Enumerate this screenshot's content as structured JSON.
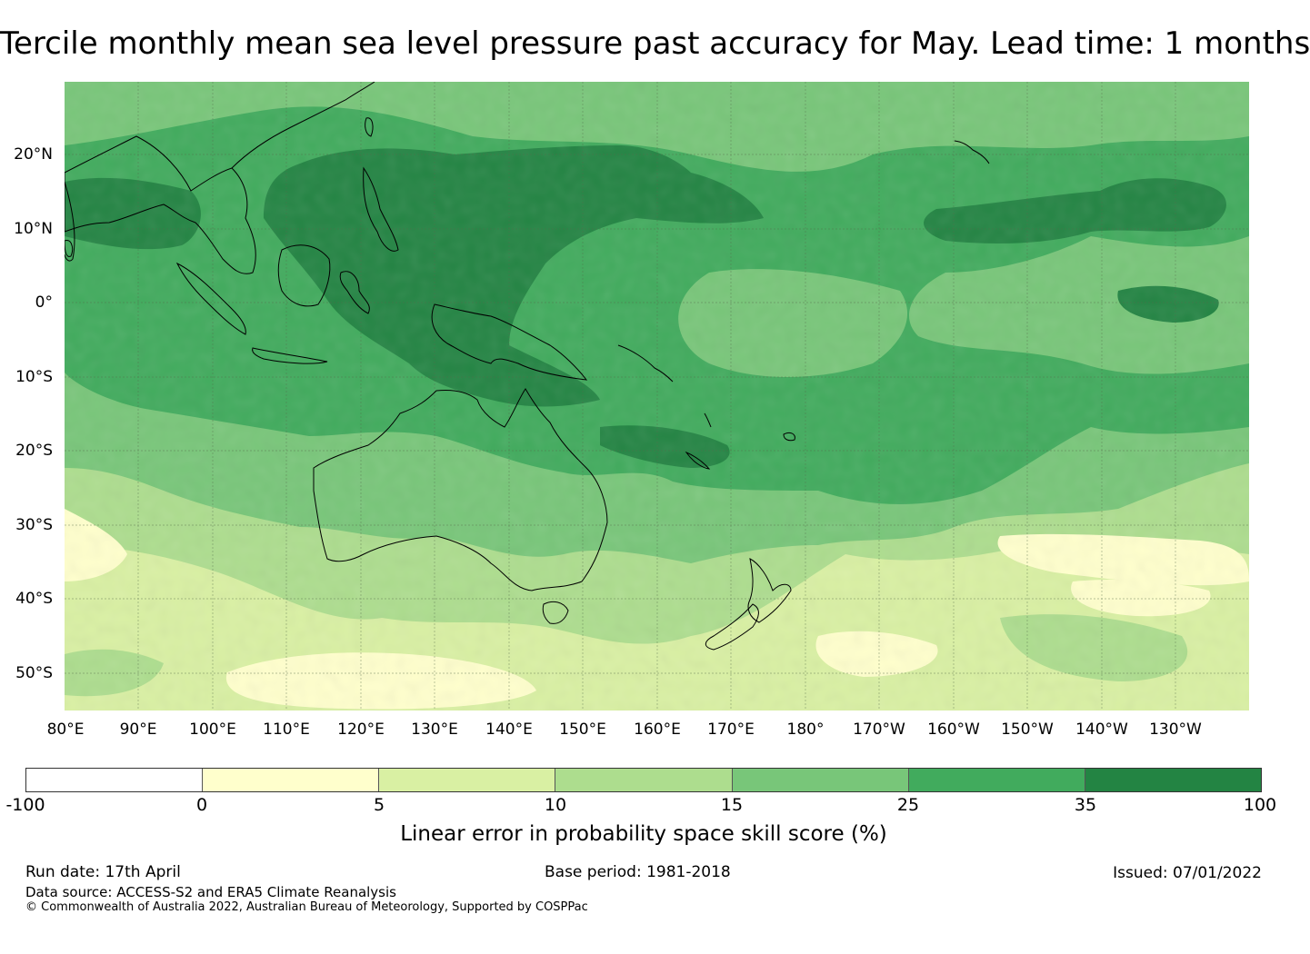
{
  "title": "Tercile monthly mean sea level pressure past accuracy for May. Lead time: 1 months",
  "map": {
    "lat_ticks": [
      "20°N",
      "10°N",
      "0°",
      "10°S",
      "20°S",
      "30°S",
      "40°S",
      "50°S"
    ],
    "lon_ticks": [
      "80°E",
      "90°E",
      "100°E",
      "110°E",
      "120°E",
      "130°E",
      "140°E",
      "150°E",
      "160°E",
      "170°E",
      "180°",
      "170°W",
      "160°W",
      "150°W",
      "140°W",
      "130°W"
    ],
    "extent": {
      "lon": [
        80,
        240
      ],
      "lat": [
        -55,
        30
      ]
    }
  },
  "colorbar": {
    "ticks": [
      "-100",
      "0",
      "5",
      "10",
      "15",
      "25",
      "35",
      "100"
    ],
    "colors": [
      "#ffffff",
      "#ffffcc",
      "#d9f0a3",
      "#addd8e",
      "#78c679",
      "#41ab5d",
      "#238443"
    ],
    "label": "Linear error in probability space skill score (%)"
  },
  "footer": {
    "run_date": "Run date: 17th April",
    "base_period": "Base period: 1981-2018",
    "issued": "Issued: 07/01/2022",
    "data_source": "Data source: ACCESS-S2 and ERA5 Climate Reanalysis",
    "copyright": "© Commonwealth of Australia 2022, Australian Bureau of Meteorology, Supported by COSPPac"
  }
}
